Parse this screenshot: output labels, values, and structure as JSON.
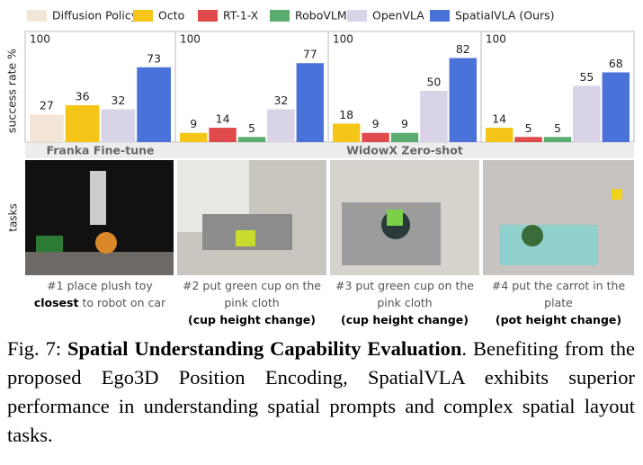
{
  "chart_data": [
    {
      "type": "bar",
      "ylabel": "success rate %",
      "xlabel": "Franka Fine-tune",
      "ylim": [
        0,
        100
      ],
      "yticks": [
        100
      ],
      "series": [
        {
          "name": "Diffusion Policy",
          "color": "#f3e6d6",
          "values": [
            27
          ]
        },
        {
          "name": "Octo",
          "color": "#f5c518",
          "values": [
            36
          ]
        },
        {
          "name": "RT-1-X",
          "color": "#e04a4a",
          "values": [
            null
          ]
        },
        {
          "name": "RoboVLM",
          "color": "#5aab6e",
          "values": [
            null
          ]
        },
        {
          "name": "OpenVLA",
          "color": "#d9d3e8",
          "values": [
            32
          ]
        },
        {
          "name": "SpatialVLA (Ours)",
          "color": "#4a73d9",
          "values": [
            73
          ]
        }
      ]
    },
    {
      "type": "bar",
      "ylim": [
        0,
        100
      ],
      "yticks": [
        100
      ],
      "series": [
        {
          "name": "Octo",
          "color": "#f5c518",
          "values": [
            9
          ]
        },
        {
          "name": "RT-1-X",
          "color": "#e04a4a",
          "values": [
            14
          ]
        },
        {
          "name": "RoboVLM",
          "color": "#5aab6e",
          "values": [
            5
          ]
        },
        {
          "name": "OpenVLA",
          "color": "#d9d3e8",
          "values": [
            32
          ]
        },
        {
          "name": "SpatialVLA (Ours)",
          "color": "#4a73d9",
          "values": [
            77
          ]
        }
      ]
    },
    {
      "type": "bar",
      "xlabel": "WidowX Zero-shot",
      "ylim": [
        0,
        100
      ],
      "yticks": [
        100
      ],
      "series": [
        {
          "name": "Octo",
          "color": "#f5c518",
          "values": [
            18
          ]
        },
        {
          "name": "RT-1-X",
          "color": "#e04a4a",
          "values": [
            9
          ]
        },
        {
          "name": "RoboVLM",
          "color": "#5aab6e",
          "values": [
            9
          ]
        },
        {
          "name": "OpenVLA",
          "color": "#d9d3e8",
          "values": [
            50
          ]
        },
        {
          "name": "SpatialVLA (Ours)",
          "color": "#4a73d9",
          "values": [
            82
          ]
        }
      ]
    },
    {
      "type": "bar",
      "ylim": [
        0,
        100
      ],
      "yticks": [
        100
      ],
      "series": [
        {
          "name": "Octo",
          "color": "#f5c518",
          "values": [
            14
          ]
        },
        {
          "name": "RT-1-X",
          "color": "#e04a4a",
          "values": [
            5
          ]
        },
        {
          "name": "RoboVLM",
          "color": "#5aab6e",
          "values": [
            5
          ]
        },
        {
          "name": "OpenVLA",
          "color": "#d9d3e8",
          "values": [
            55
          ]
        },
        {
          "name": "SpatialVLA (Ours)",
          "color": "#4a73d9",
          "values": [
            68
          ]
        }
      ]
    }
  ],
  "tasks": {
    "label": "tasks",
    "items": [
      {
        "text": "#1 place plush toy",
        "emphasis": "closest",
        "text_end": "to robot on car"
      },
      {
        "text": "#2 put green cup on the pink cloth",
        "note": "(cup height change)"
      },
      {
        "text": "#3 put green cup on the pink cloth",
        "note": "(cup height change)"
      },
      {
        "text": "#4 put the carrot in the plate",
        "note": "(pot height change)"
      }
    ]
  },
  "caption": {
    "label": "Fig. 7:",
    "title": "Spatial Understanding Capability Evaluation",
    "text": ". Benefiting from the proposed Ego3D Position Encoding, SpatialVLA exhibits superior performance in understanding spatial prompts and complex spatial layout tasks."
  }
}
